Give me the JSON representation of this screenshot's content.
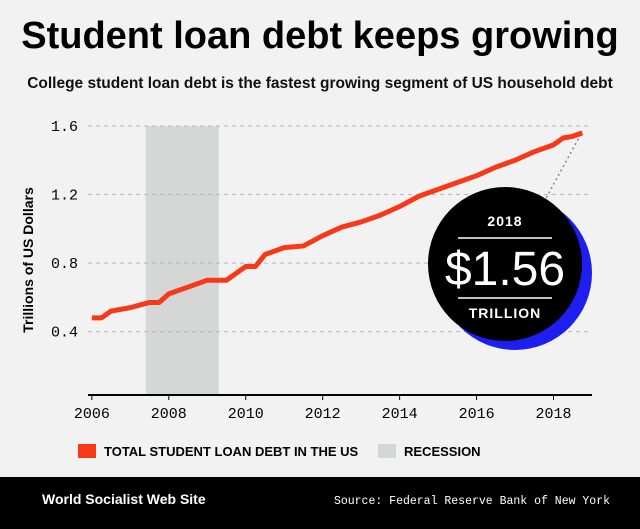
{
  "chart_data": {
    "type": "line",
    "title": "Student loan debt keeps growing",
    "subtitle": "College student loan debt is the fastest growing segment of US household debt",
    "y_label": "Trillions of US Dollars",
    "x": [
      2006,
      2006.25,
      2006.5,
      2007,
      2007.5,
      2007.75,
      2008,
      2008.5,
      2009,
      2009.5,
      2010,
      2010.25,
      2010.5,
      2011,
      2011.5,
      2012,
      2012.5,
      2013,
      2013.5,
      2014,
      2014.5,
      2015,
      2015.5,
      2016,
      2016.5,
      2017,
      2017.5,
      2018,
      2018.25,
      2018.5,
      2018.75
    ],
    "series": [
      {
        "name": "TOTAL STUDENT LOAN DEBT IN THE US",
        "color": "#f7391a",
        "values": [
          0.48,
          0.48,
          0.52,
          0.54,
          0.57,
          0.57,
          0.62,
          0.66,
          0.7,
          0.7,
          0.78,
          0.78,
          0.85,
          0.89,
          0.9,
          0.96,
          1.01,
          1.04,
          1.08,
          1.13,
          1.19,
          1.23,
          1.27,
          1.31,
          1.36,
          1.4,
          1.45,
          1.49,
          1.53,
          1.54,
          1.56
        ]
      }
    ],
    "recession": {
      "name": "RECESSION",
      "color": "#d5d6d6",
      "range": [
        2007.4,
        2009.3
      ]
    },
    "xlim": [
      2005.9,
      2019
    ],
    "xticks": [
      2006,
      2008,
      2010,
      2012,
      2014,
      2016,
      2018
    ],
    "ylim": [
      0.03,
      1.6
    ],
    "yticks": [
      0.4,
      0.8,
      1.2,
      1.6
    ],
    "grid": true,
    "callout": {
      "top": "2018",
      "value": 1.56,
      "value_label": "$1.56",
      "bottom": "TRILLION"
    },
    "brand": "World Socialist Web Site",
    "source": "Source: Federal Reserve Bank of New York"
  }
}
